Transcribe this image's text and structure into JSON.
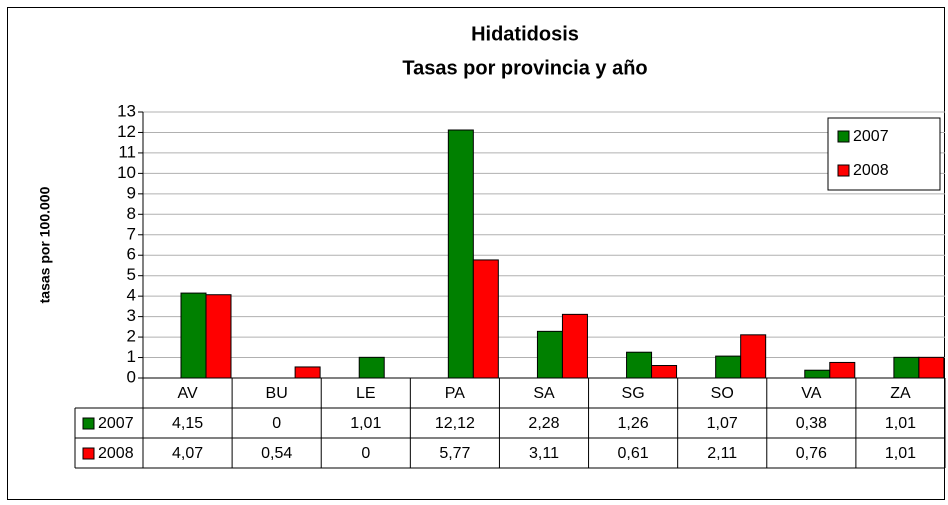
{
  "chart_data": {
    "type": "bar",
    "title": "Hidatidosis",
    "subtitle": "Tasas por provincia y año",
    "y_label": "tasas por 100.000",
    "categories": [
      "AV",
      "BU",
      "LE",
      "PA",
      "SA",
      "SG",
      "SO",
      "VA",
      "ZA"
    ],
    "series": [
      {
        "name": "2007",
        "color": "#008000",
        "values": [
          4.15,
          0,
          1.01,
          12.12,
          2.28,
          1.26,
          1.07,
          0.38,
          1.01
        ],
        "value_labels": [
          "4,15",
          "0",
          "1,01",
          "12,12",
          "2,28",
          "1,26",
          "1,07",
          "0,38",
          "1,01"
        ]
      },
      {
        "name": "2008",
        "color": "#ff0000",
        "values": [
          4.07,
          0.54,
          0,
          5.77,
          3.11,
          0.61,
          2.11,
          0.76,
          1.01
        ],
        "value_labels": [
          "4,07",
          "0,54",
          "0",
          "5,77",
          "3,11",
          "0,61",
          "2,11",
          "0,76",
          "1,01"
        ]
      }
    ],
    "ylim": [
      0,
      13
    ],
    "yticks": [
      0,
      1,
      2,
      3,
      4,
      5,
      6,
      7,
      8,
      9,
      10,
      11,
      12,
      13
    ],
    "grid": true,
    "legend": "upper right",
    "data_table": true
  }
}
